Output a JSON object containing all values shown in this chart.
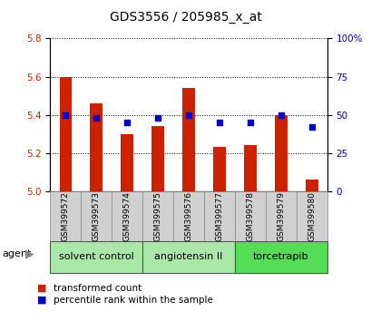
{
  "title": "GDS3556 / 205985_x_at",
  "samples": [
    "GSM399572",
    "GSM399573",
    "GSM399574",
    "GSM399575",
    "GSM399576",
    "GSM399577",
    "GSM399578",
    "GSM399579",
    "GSM399580"
  ],
  "transformed_count": [
    5.6,
    5.46,
    5.3,
    5.34,
    5.54,
    5.23,
    5.24,
    5.4,
    5.06
  ],
  "percentile_rank": [
    50,
    48,
    45,
    48,
    50,
    45,
    45,
    50,
    42
  ],
  "ylim_left": [
    5.0,
    5.8
  ],
  "ylim_right": [
    0,
    100
  ],
  "yticks_left": [
    5.0,
    5.2,
    5.4,
    5.6,
    5.8
  ],
  "yticks_right": [
    0,
    25,
    50,
    75,
    100
  ],
  "bar_color": "#cc2200",
  "dot_color": "#0000cc",
  "agent_groups": [
    {
      "label": "solvent control",
      "indices": [
        0,
        1,
        2
      ],
      "color": "#aae8aa"
    },
    {
      "label": "angiotensin II",
      "indices": [
        3,
        4,
        5
      ],
      "color": "#aae8aa"
    },
    {
      "label": "torcetrapib",
      "indices": [
        6,
        7,
        8
      ],
      "color": "#55dd55"
    }
  ],
  "agent_label": "agent",
  "legend_bar_label": "transformed count",
  "legend_dot_label": "percentile rank within the sample",
  "title_fontsize": 10,
  "tick_fontsize": 7.5,
  "sample_fontsize": 6.5,
  "agent_fontsize": 8,
  "legend_fontsize": 7.5,
  "bar_width": 0.4,
  "gray_color": "#d0d0d0"
}
